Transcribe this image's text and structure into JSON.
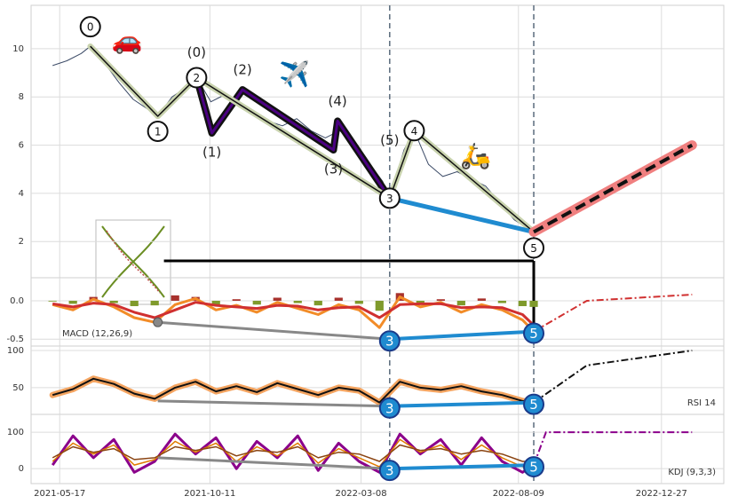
{
  "chart_data": [
    {
      "type": "line",
      "xlim": [
        "2021-04-19",
        "2023-02-26"
      ],
      "xticks": [
        "2021-05-17",
        "2021-10-11",
        "2022-03-08",
        "2022-08-09",
        "2022-12-27"
      ],
      "ylim": [
        0.5,
        11.8
      ],
      "yticks": [
        2,
        4,
        6,
        8,
        10
      ],
      "grid": true,
      "x": [
        "2021-05-10",
        "2021-05-24",
        "2021-06-07",
        "2021-06-16",
        "2021-06-30",
        "2021-07-14",
        "2021-07-28",
        "2021-08-11",
        "2021-08-21",
        "2021-09-04",
        "2021-09-18",
        "2021-09-28",
        "2021-10-12",
        "2021-10-26",
        "2021-11-09",
        "2021-11-23",
        "2021-12-07",
        "2021-12-21",
        "2022-01-04",
        "2022-01-18",
        "2022-02-01",
        "2022-02-15",
        "2022-03-01",
        "2022-03-15",
        "2022-03-29",
        "2022-04-05",
        "2022-04-19",
        "2022-04-29",
        "2022-05-13",
        "2022-05-27",
        "2022-06-10",
        "2022-06-24",
        "2022-07-08",
        "2022-07-22",
        "2022-08-05",
        "2022-08-24"
      ],
      "series": [
        {
          "color": "#3b4a66",
          "values": [
            9.3,
            9.5,
            9.8,
            10.1,
            9.4,
            8.6,
            7.9,
            7.5,
            7.2,
            8.0,
            8.4,
            8.8,
            7.8,
            8.1,
            7.6,
            7.3,
            7.0,
            6.8,
            7.1,
            6.6,
            6.3,
            6.6,
            6.2,
            5.3,
            4.5,
            3.8,
            5.8,
            6.6,
            5.2,
            4.7,
            4.9,
            4.6,
            4.3,
            3.6,
            2.9,
            2.4
          ]
        },
        {
          "color": "#4b0082",
          "halo": "#111111",
          "x": [
            "2021-09-28",
            "2021-10-13",
            "2021-11-12",
            "2022-02-09",
            "2022-02-13",
            "2022-04-05"
          ],
          "values": [
            8.8,
            6.5,
            8.3,
            5.8,
            7.0,
            3.8
          ],
          "labels": [
            "(0)",
            "(1)",
            "(2)",
            "(3)",
            "(4)",
            "(5)"
          ],
          "label_style": "plain"
        },
        {
          "color": "#111111",
          "halo": "#c9d3ae",
          "x": [
            "2021-06-16",
            "2021-08-21",
            "2021-09-28",
            "2022-04-05",
            "2022-04-29",
            "2022-08-24"
          ],
          "values": [
            10.1,
            7.2,
            8.8,
            3.8,
            6.6,
            2.4
          ],
          "labels": [
            "0",
            "1",
            "2",
            "3",
            "4",
            "5"
          ],
          "label_style": "circle",
          "markers": true
        },
        {
          "color": "#1f8bd0",
          "x": [
            "2022-04-05",
            "2022-08-24"
          ],
          "values": [
            3.8,
            2.4
          ]
        },
        {
          "color": "#111111",
          "halo": "#f08080",
          "dash": "dashed",
          "x": [
            "2022-08-24",
            "2023-01-26"
          ],
          "values": [
            2.4,
            6.0
          ]
        },
        {
          "color": "#000000",
          "connector": true,
          "x": [
            "2021-08-27",
            "2022-08-24"
          ],
          "values": [
            1.2,
            1.2
          ]
        }
      ],
      "icons": [
        {
          "text": "🚗",
          "x": "2021-07-22",
          "value": 10.3
        },
        {
          "text": "✈️",
          "x": "2022-01-02",
          "value": 8.9
        },
        {
          "text": "🛵",
          "x": "2022-06-28",
          "value": 5.5
        }
      ]
    },
    {
      "type": "line",
      "title": "MACD (12,26,9)",
      "xlim": [
        "2021-04-19",
        "2023-02-26"
      ],
      "ylim": [
        -0.59,
        0.3
      ],
      "yticks": [
        {
          "value": 0,
          "label": "0.0"
        },
        -0.5
      ],
      "grid": true,
      "x": [
        "2021-05-10",
        "2021-05-30",
        "2021-06-19",
        "2021-07-09",
        "2021-07-29",
        "2021-08-18",
        "2021-09-07",
        "2021-09-27",
        "2021-10-17",
        "2021-11-06",
        "2021-11-26",
        "2021-12-16",
        "2022-01-05",
        "2022-01-25",
        "2022-02-14",
        "2022-03-06",
        "2022-03-26",
        "2022-04-15",
        "2022-05-05",
        "2022-05-25",
        "2022-06-14",
        "2022-07-04",
        "2022-07-24",
        "2022-08-13",
        "2022-08-24"
      ],
      "series": [
        {
          "type": "bar",
          "colors": [
            "#a8322d",
            "#7f9a2c"
          ],
          "values": [
            -0.01,
            -0.04,
            0.05,
            -0.03,
            -0.07,
            -0.06,
            0.07,
            0.05,
            -0.06,
            0.02,
            -0.05,
            0.04,
            -0.03,
            -0.06,
            0.04,
            -0.04,
            -0.13,
            0.1,
            -0.04,
            0.02,
            -0.06,
            0.03,
            -0.03,
            -0.07,
            -0.08
          ]
        },
        {
          "color": "#f28c28",
          "values": [
            -0.05,
            -0.12,
            0.02,
            -0.08,
            -0.22,
            -0.28,
            -0.05,
            0.03,
            -0.12,
            -0.06,
            -0.15,
            -0.02,
            -0.1,
            -0.18,
            -0.05,
            -0.12,
            -0.35,
            0.05,
            -0.08,
            -0.02,
            -0.15,
            -0.05,
            -0.12,
            -0.25,
            -0.4
          ]
        },
        {
          "color": "#d03030",
          "values": [
            -0.04,
            -0.08,
            -0.03,
            -0.05,
            -0.15,
            -0.22,
            -0.12,
            -0.02,
            -0.06,
            -0.08,
            -0.1,
            -0.06,
            -0.07,
            -0.12,
            -0.09,
            -0.08,
            -0.22,
            -0.05,
            -0.04,
            -0.04,
            -0.09,
            -0.08,
            -0.09,
            -0.18,
            -0.32
          ]
        },
        {
          "color": "#888888",
          "x": [
            "2021-08-21",
            "2022-04-05"
          ],
          "values": [
            -0.28,
            -0.5
          ],
          "markers": true
        },
        {
          "color": "#1f8bd0",
          "x": [
            "2022-04-05",
            "2022-08-24"
          ],
          "values": [
            -0.5,
            -0.4
          ],
          "labels": [
            "3",
            "5"
          ],
          "label_style": "badge"
        },
        {
          "color": "#d03030",
          "dash": "dashdot",
          "x": [
            "2022-08-24",
            "2022-10-15",
            "2023-01-26"
          ],
          "values": [
            -0.4,
            0.0,
            0.08
          ]
        }
      ]
    },
    {
      "type": "line",
      "title": "RSI 14",
      "xlim": [
        "2021-04-19",
        "2023-02-26"
      ],
      "ylim": [
        14,
        106
      ],
      "yticks": [
        50,
        100
      ],
      "grid": true,
      "x": [
        "2021-05-10",
        "2021-05-30",
        "2021-06-19",
        "2021-07-09",
        "2021-07-29",
        "2021-08-18",
        "2021-09-07",
        "2021-09-27",
        "2021-10-17",
        "2021-11-06",
        "2021-11-26",
        "2021-12-16",
        "2022-01-05",
        "2022-01-25",
        "2022-02-14",
        "2022-03-06",
        "2022-03-26",
        "2022-04-15",
        "2022-05-05",
        "2022-05-25",
        "2022-06-14",
        "2022-07-04",
        "2022-07-24",
        "2022-08-13",
        "2022-08-24"
      ],
      "series": [
        {
          "color": "#111111",
          "halo": "#f4a460",
          "values": [
            40,
            48,
            62,
            55,
            42,
            35,
            50,
            58,
            45,
            52,
            44,
            56,
            48,
            40,
            50,
            46,
            30,
            58,
            50,
            47,
            52,
            45,
            40,
            32,
            30
          ]
        },
        {
          "color": "#888888",
          "x": [
            "2021-08-21",
            "2022-04-05"
          ],
          "values": [
            32,
            25
          ]
        },
        {
          "color": "#1f8bd0",
          "x": [
            "2022-04-05",
            "2022-08-24"
          ],
          "values": [
            25,
            30
          ],
          "labels": [
            "3",
            "5"
          ],
          "label_style": "badge"
        },
        {
          "color": "#111111",
          "dash": "dashdot",
          "x": [
            "2022-08-24",
            "2022-10-15",
            "2023-01-26"
          ],
          "values": [
            30,
            80,
            100
          ]
        }
      ]
    },
    {
      "type": "line",
      "title": "KDJ (9,3,3)",
      "xlim": [
        "2021-04-19",
        "2023-02-26"
      ],
      "ylim": [
        -41,
        149
      ],
      "yticks": [
        0,
        100
      ],
      "grid": true,
      "x": [
        "2021-05-10",
        "2021-05-30",
        "2021-06-19",
        "2021-07-09",
        "2021-07-29",
        "2021-08-18",
        "2021-09-07",
        "2021-09-27",
        "2021-10-17",
        "2021-11-06",
        "2021-11-26",
        "2021-12-16",
        "2022-01-05",
        "2022-01-25",
        "2022-02-14",
        "2022-03-06",
        "2022-03-26",
        "2022-04-15",
        "2022-05-05",
        "2022-05-25",
        "2022-06-14",
        "2022-07-04",
        "2022-07-24",
        "2022-08-13",
        "2022-08-24"
      ],
      "series": [
        {
          "color": "#8b008b",
          "values": [
            10,
            90,
            30,
            80,
            -10,
            20,
            95,
            40,
            85,
            0,
            75,
            30,
            90,
            -5,
            70,
            20,
            -10,
            95,
            40,
            80,
            10,
            85,
            20,
            -10,
            10
          ]
        },
        {
          "color": "#e07b00",
          "values": [
            20,
            70,
            40,
            65,
            10,
            25,
            75,
            45,
            70,
            20,
            60,
            35,
            70,
            15,
            55,
            30,
            5,
            80,
            45,
            65,
            25,
            65,
            30,
            5,
            15
          ]
        },
        {
          "color": "#8b4513",
          "values": [
            30,
            60,
            45,
            55,
            25,
            30,
            60,
            50,
            60,
            35,
            50,
            45,
            60,
            30,
            45,
            40,
            20,
            65,
            50,
            55,
            40,
            50,
            40,
            20,
            20
          ]
        },
        {
          "color": "#888888",
          "x": [
            "2021-08-21",
            "2022-04-05"
          ],
          "values": [
            30,
            0
          ]
        },
        {
          "color": "#1f8bd0",
          "x": [
            "2022-04-05",
            "2022-08-24"
          ],
          "values": [
            0,
            10
          ],
          "labels": [
            "3",
            "5"
          ],
          "label_style": "badge"
        },
        {
          "color": "#8b008b",
          "dash": "dashdot",
          "x": [
            "2022-08-24",
            "2022-09-05",
            "2023-01-26"
          ],
          "values": [
            10,
            100,
            100
          ]
        }
      ]
    }
  ]
}
